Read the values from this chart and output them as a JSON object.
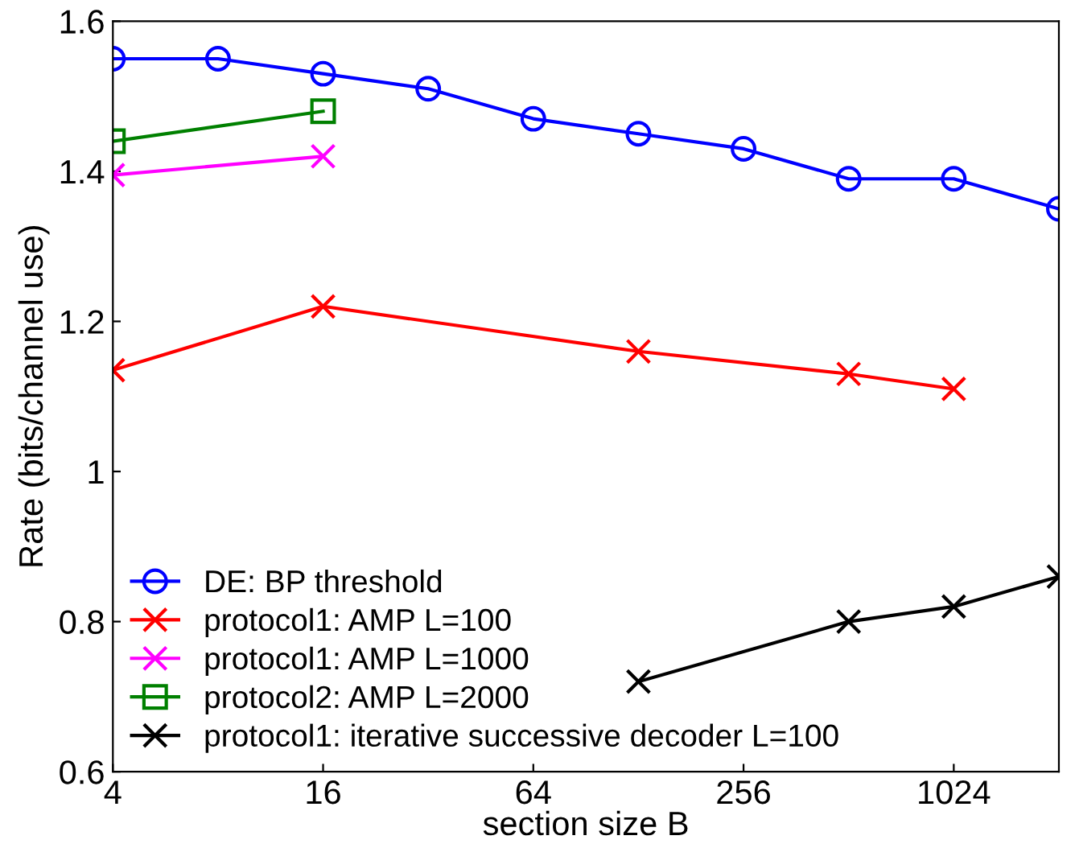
{
  "chart_data": {
    "type": "line",
    "xlabel": "section size B",
    "ylabel": "Rate (bits/channel use)",
    "log": "x",
    "xlim": [
      4,
      2048
    ],
    "ylim": [
      0.6,
      1.6
    ],
    "xticks": [
      4,
      16,
      64,
      256,
      1024
    ],
    "yticks": [
      0.6,
      0.8,
      1,
      1.2,
      1.4,
      1.6
    ],
    "grid": false,
    "legend": "bottom left",
    "series": [
      {
        "name": "DE: BP threshold",
        "color": "#0000ff",
        "marker": "circle",
        "x": [
          4,
          8,
          16,
          32,
          64,
          128,
          256,
          512,
          1024,
          2048
        ],
        "values": [
          1.55,
          1.55,
          1.53,
          1.51,
          1.47,
          1.45,
          1.43,
          1.39,
          1.39,
          1.35
        ]
      },
      {
        "name": "protocol1: AMP L=100",
        "color": "#ff0000",
        "marker": "cross",
        "x": [
          4,
          16,
          128,
          512,
          1024
        ],
        "values": [
          1.135,
          1.22,
          1.16,
          1.13,
          1.11
        ]
      },
      {
        "name": "protocol1: AMP L=1000",
        "color": "#ff00ff",
        "marker": "cross",
        "x": [
          4,
          16
        ],
        "values": [
          1.395,
          1.42
        ]
      },
      {
        "name": "protocol2: AMP L=2000",
        "color": "#008000",
        "marker": "square",
        "x": [
          4,
          16
        ],
        "values": [
          1.44,
          1.48
        ]
      },
      {
        "name": "protocol1: iterative successive decoder L=100",
        "color": "#000000",
        "marker": "cross",
        "x": [
          128,
          512,
          1024,
          2048
        ],
        "values": [
          0.72,
          0.8,
          0.82,
          0.86
        ]
      }
    ]
  }
}
